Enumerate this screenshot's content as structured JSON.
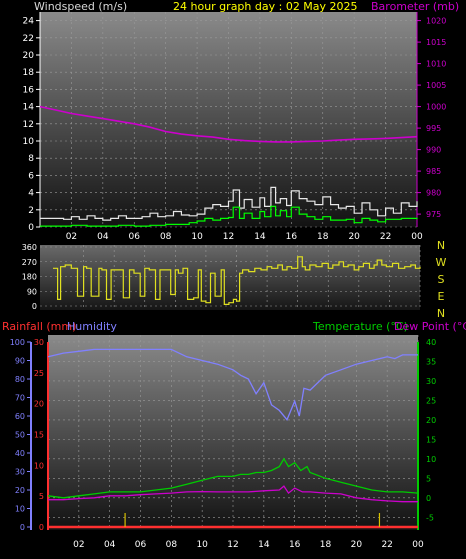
{
  "header": {
    "windspeed_label": "Windspeed (m/s)",
    "title": "24 hour graph day : 02 May 2025",
    "barometer_label": "Barometer (mb)"
  },
  "footer_labels": {
    "rainfall": "Rainfall (mm)",
    "humidity": "Humidity",
    "temperature": "Temperature (°C)",
    "dewpoint": "Dew Point (°C)"
  },
  "direction_letters": [
    "N",
    "W",
    "S",
    "E",
    "N"
  ],
  "colors": {
    "windspeed_label": "#d8d8d8",
    "title": "#ffff00",
    "barometer": "#cc00cc",
    "wind_avg": "#00ff00",
    "wind_gust": "#e8e8e8",
    "direction": "#e0e020",
    "rainfall": "#ff3030",
    "humidity": "#8080ff",
    "temperature": "#00cc00",
    "dewpoint": "#cc00cc"
  },
  "chart_data": [
    {
      "type": "line",
      "name": "wind-barometer",
      "x_ticks": [
        "02",
        "04",
        "06",
        "08",
        "10",
        "12",
        "14",
        "16",
        "18",
        "20",
        "22",
        "00"
      ],
      "y_left": {
        "ticks": [
          0,
          2,
          4,
          6,
          8,
          10,
          12,
          14,
          16,
          18,
          20,
          22,
          24
        ],
        "ylim": [
          0,
          25
        ]
      },
      "y_right": {
        "ticks": [
          975,
          980,
          985,
          990,
          995,
          1000,
          1005,
          1010,
          1015,
          1020
        ],
        "ylim": [
          972,
          1022
        ]
      },
      "grid": true,
      "series": [
        {
          "key": "barometer",
          "axis": "right",
          "x": [
            0,
            1,
            2,
            3,
            4,
            5,
            6,
            7,
            8,
            9,
            10,
            11,
            12,
            13,
            14,
            15,
            16,
            17,
            18,
            19,
            20,
            21,
            22,
            23,
            24
          ],
          "values": [
            1000,
            999.2,
            998.4,
            997.8,
            997.2,
            996.6,
            996,
            995.2,
            994.2,
            993.6,
            993.2,
            992.9,
            992.4,
            992.1,
            991.9,
            991.8,
            991.8,
            991.9,
            992,
            992.2,
            992.4,
            992.5,
            992.6,
            992.8,
            993
          ]
        },
        {
          "key": "wind_gust",
          "axis": "left",
          "x": [
            0,
            0.5,
            1,
            1.5,
            2,
            2.5,
            3,
            3.5,
            4,
            4.5,
            5,
            5.5,
            6,
            6.5,
            7,
            7.5,
            8,
            8.5,
            9,
            9.5,
            10,
            10.5,
            11,
            11.5,
            12,
            12.3,
            12.7,
            13,
            13.5,
            14,
            14.3,
            14.7,
            15,
            15.3,
            15.7,
            16,
            16.5,
            17,
            17.5,
            18,
            18.5,
            19,
            19.5,
            20,
            20.5,
            21,
            21.5,
            22,
            22.5,
            23,
            23.5,
            24
          ],
          "values": [
            1,
            1,
            1,
            0.9,
            1.2,
            0.9,
            1.3,
            1,
            0.8,
            1,
            1.3,
            1,
            1,
            1.2,
            1.6,
            1.2,
            1.3,
            1.8,
            1.4,
            1.3,
            1.5,
            2.2,
            2.6,
            2.4,
            3,
            4.3,
            2.2,
            3.2,
            2.3,
            3.4,
            2.4,
            4.6,
            2.8,
            3.3,
            2.5,
            4.2,
            3.3,
            3,
            2.6,
            3.5,
            2.6,
            2.2,
            2.4,
            1.6,
            2.8,
            2,
            1.3,
            2.2,
            1.6,
            2.8,
            2.4,
            3
          ]
        },
        {
          "key": "wind_avg",
          "axis": "left",
          "x": [
            0,
            1,
            2,
            3,
            4,
            5,
            6,
            7,
            8,
            9,
            9.5,
            10,
            10.5,
            11,
            11.5,
            12,
            12.3,
            12.7,
            13,
            13.5,
            14,
            14.3,
            14.7,
            15,
            15.3,
            15.7,
            16,
            16.5,
            17,
            17.5,
            18,
            18.5,
            19,
            19.5,
            20,
            20.5,
            21,
            21.5,
            22,
            22.5,
            23,
            23.5,
            24
          ],
          "values": [
            0.1,
            0.1,
            0.2,
            0.1,
            0.1,
            0.2,
            0.1,
            0.2,
            0.3,
            0.3,
            0.5,
            0.7,
            1,
            0.8,
            1,
            1.1,
            2.3,
            1,
            1.6,
            1,
            1.8,
            1.2,
            2.4,
            1.3,
            1.9,
            1.2,
            2.3,
            1.5,
            1.2,
            0.9,
            1.2,
            0.8,
            0.8,
            0.9,
            0.5,
            1,
            0.8,
            0.6,
            0.9,
            0.9,
            1,
            1,
            0.9
          ]
        }
      ]
    },
    {
      "type": "line",
      "name": "wind-direction",
      "y_ticks": [
        0,
        90,
        180,
        270,
        360
      ],
      "ylim": [
        0,
        360
      ],
      "grid": true,
      "series": [
        {
          "key": "direction",
          "x": [
            0,
            0.3,
            0.5,
            0.8,
            1.2,
            1.6,
            2,
            2.2,
            2.5,
            3,
            3.2,
            3.5,
            3.8,
            4.2,
            4.6,
            5,
            5.3,
            5.7,
            6,
            6.3,
            6.7,
            7,
            7.3,
            7.7,
            8,
            8.2,
            8.5,
            8.8,
            9.2,
            9.5,
            9.7,
            10,
            10.3,
            10.6,
            11,
            11.2,
            11.5,
            11.8,
            12,
            12.2,
            12.4,
            12.8,
            13.2,
            13.6,
            14,
            14.3,
            14.7,
            15,
            15.3,
            15.6,
            16,
            16.3,
            16.5,
            16.8,
            17.2,
            17.6,
            18,
            18.3,
            18.7,
            19,
            19.3,
            19.7,
            20,
            20.3,
            20.7,
            21,
            21.2,
            21.5,
            21.8,
            22.2,
            22.6,
            23,
            23.4,
            23.7,
            24
          ],
          "values": [
            230,
            40,
            240,
            250,
            230,
            60,
            240,
            230,
            60,
            230,
            220,
            40,
            220,
            220,
            50,
            220,
            200,
            60,
            230,
            220,
            40,
            220,
            220,
            70,
            220,
            200,
            230,
            40,
            50,
            220,
            30,
            20,
            200,
            60,
            220,
            10,
            20,
            40,
            30,
            200,
            220,
            210,
            230,
            220,
            240,
            230,
            250,
            220,
            240,
            230,
            300,
            240,
            220,
            250,
            240,
            260,
            230,
            250,
            270,
            240,
            250,
            220,
            240,
            260,
            230,
            250,
            280,
            250,
            240,
            260,
            230,
            240,
            250,
            230,
            240
          ]
        }
      ]
    },
    {
      "type": "line",
      "name": "temp-humidity-rain",
      "x_ticks": [
        "02",
        "04",
        "06",
        "08",
        "10",
        "12",
        "14",
        "16",
        "18",
        "20",
        "22",
        "00"
      ],
      "y_left_outer": {
        "ticks": [
          0,
          10,
          20,
          30,
          40,
          50,
          60,
          70,
          80,
          90,
          100
        ],
        "ylim": [
          0,
          100
        ]
      },
      "y_left_inner": {
        "ticks": [
          0,
          5,
          10,
          15,
          20,
          25,
          30
        ],
        "ylim": [
          0,
          30
        ]
      },
      "y_right": {
        "ticks": [
          -5,
          0,
          5,
          10,
          15,
          20,
          25,
          30,
          35,
          40
        ],
        "ylim": [
          -7.5,
          40
        ]
      },
      "grid": true,
      "series": [
        {
          "key": "humidity",
          "axis": "left_outer",
          "x": [
            0,
            1,
            2,
            3,
            4,
            5,
            6,
            7,
            7.5,
            8,
            9,
            10,
            11,
            12,
            12.5,
            13,
            13.5,
            14,
            14.5,
            15,
            15.5,
            16,
            16.3,
            16.6,
            17,
            18,
            19,
            20,
            21,
            22,
            22.5,
            23,
            24
          ],
          "values": [
            92,
            94,
            95,
            96,
            96,
            96,
            96,
            96,
            96,
            96,
            92,
            90,
            88,
            85,
            82,
            80,
            72,
            78,
            66,
            63,
            58,
            68,
            60,
            75,
            74,
            82,
            85,
            88,
            90,
            92,
            91,
            93,
            93
          ]
        },
        {
          "key": "temperature",
          "axis": "right",
          "x": [
            0,
            1,
            2,
            3,
            4,
            5,
            6,
            7,
            8,
            9,
            10,
            11,
            12,
            12.5,
            13,
            13.5,
            14,
            14.5,
            15,
            15.3,
            15.6,
            16,
            16.4,
            16.8,
            17,
            18,
            19,
            20,
            21,
            22,
            23,
            24
          ],
          "values": [
            0.5,
            0,
            0.5,
            1,
            1.5,
            1.5,
            1.5,
            2,
            2.5,
            3.5,
            4.5,
            5.5,
            5.5,
            6,
            6,
            6.5,
            6.5,
            7,
            8,
            10,
            8,
            9,
            7,
            8,
            6.5,
            5,
            4,
            3,
            2,
            1.5,
            1.5,
            1.2
          ]
        },
        {
          "key": "dewpoint",
          "axis": "right",
          "x": [
            0,
            1,
            2,
            3,
            4,
            5,
            6,
            7,
            8,
            9,
            10,
            11,
            12,
            13,
            14,
            15,
            15.3,
            15.6,
            16,
            16.5,
            17,
            18,
            19,
            20,
            21,
            22,
            23,
            24
          ],
          "values": [
            -0.5,
            -0.5,
            -0.2,
            0,
            0.5,
            0.5,
            0.8,
            1,
            1.2,
            1.5,
            1.6,
            1.5,
            1.5,
            1.5,
            1.8,
            2,
            3,
            1.2,
            2.5,
            1.5,
            1.5,
            1.2,
            1,
            0,
            -0.5,
            -0.8,
            -1,
            -1
          ]
        },
        {
          "key": "rainfall",
          "axis": "left_inner",
          "x": [
            0,
            24
          ],
          "values": [
            0,
            0
          ]
        }
      ],
      "rain_markers_x": [
        5,
        21.5
      ]
    }
  ]
}
